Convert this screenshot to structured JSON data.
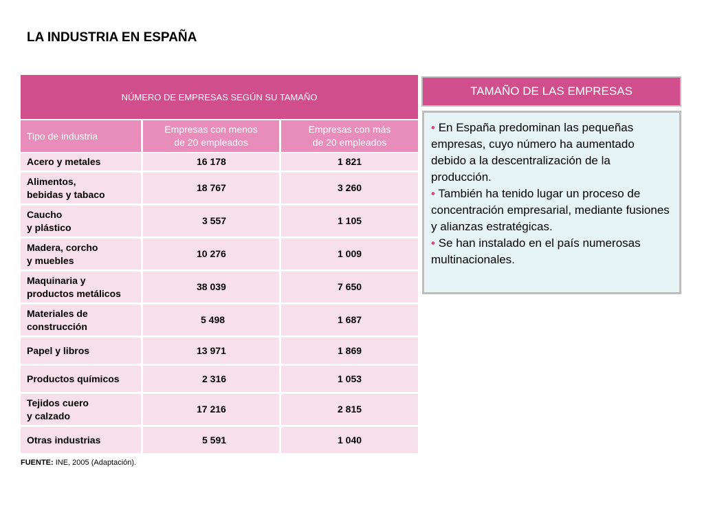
{
  "page": {
    "title": "LA INDUSTRIA EN ESPAÑA"
  },
  "table": {
    "banner": "NÚMERO DE EMPRESAS SEGÚN SU TAMAÑO",
    "headers": {
      "type": "Tipo de industria",
      "small_l1": "Empresas con menos",
      "small_l2": "de 20 empleados",
      "big_l1": "Empresas con más",
      "big_l2": "de 20 empleados"
    },
    "rows": [
      {
        "type_l1": "Acero y metales",
        "type_l2": "",
        "small": "16 178",
        "big": "1 821"
      },
      {
        "type_l1": "Alimentos,",
        "type_l2": "bebidas y tabaco",
        "small": "18 767",
        "big": "3 260"
      },
      {
        "type_l1": "Caucho",
        "type_l2": "y plástico",
        "small": "3 557",
        "big": "1 105"
      },
      {
        "type_l1": "Madera, corcho",
        "type_l2": "y muebles",
        "small": "10 276",
        "big": "1 009"
      },
      {
        "type_l1": "Maquinaria y",
        "type_l2": "productos metálicos",
        "small": "38 039",
        "big": "7 650"
      },
      {
        "type_l1": "Materiales de",
        "type_l2": "construcción",
        "small": "5 498",
        "big": "1 687"
      },
      {
        "type_l1": "Papel y libros",
        "type_l2": "",
        "small": "13 971",
        "big": "1 869"
      },
      {
        "type_l1": "Productos químicos",
        "type_l2": "",
        "small": "2 316",
        "big": "1 053"
      },
      {
        "type_l1": "Tejidos cuero",
        "type_l2": "y calzado",
        "small": "17 216",
        "big": "2 815"
      },
      {
        "type_l1": "Otras industrias",
        "type_l2": "",
        "small": "5 591",
        "big": "1 040"
      }
    ],
    "source_label": "FUENTE:",
    "source_text": " INE, 2005 (Adaptación)."
  },
  "panel": {
    "title": "TAMAÑO DE LAS EMPRESAS",
    "bullet_symbol": "•",
    "bullets": [
      "En España predominan las pequeñas empresas, cuyo número ha aumentado debido a la descentralización de la producción.",
      "También ha tenido lugar un proceso de concentración empresarial, mediante fusiones y alianzas estratégicas.",
      "Se han instalado en el país numerosas multinacionales."
    ]
  },
  "colors": {
    "accent": "#cf4e8b",
    "header": "#e88cb9",
    "row": "#f7dfeb",
    "panel_bg": "#e6f4f5"
  }
}
